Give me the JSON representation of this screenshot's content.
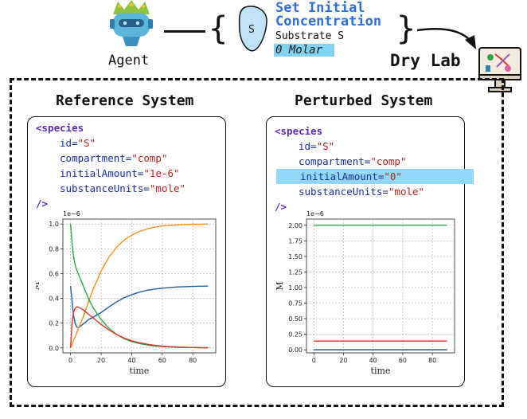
{
  "header": {
    "agent_label": "Agent",
    "species_symbol": "S",
    "action_title_line1": "Set Initial",
    "action_title_line2": "Concentration",
    "action_target": "Substrate S",
    "action_value": "0 Molar",
    "drylab_label": "Dry Lab"
  },
  "reference": {
    "title": "Reference System",
    "code": {
      "open": "<species",
      "id_attr": "id=",
      "id_val": "\"S\"",
      "comp_attr": "compartment=",
      "comp_val": "\"comp\"",
      "init_attr": "initialAmount=",
      "init_val": "\"1e-6\"",
      "units_attr": "substanceUnits=",
      "units_val": "\"mole\"",
      "close": "/>"
    }
  },
  "perturbed": {
    "title": "Perturbed System",
    "code": {
      "open": "<species",
      "id_attr": "id=",
      "id_val": "\"S\"",
      "comp_attr": "compartment=",
      "comp_val": "\"comp\"",
      "init_attr": "initialAmount=",
      "init_val": "\"0\"",
      "units_attr": "substanceUnits=",
      "units_val": "\"mole\"",
      "close": "/>"
    }
  },
  "colors": {
    "blue": "#1f5f9e",
    "orange": "#f5921e",
    "green": "#2aa84a",
    "red": "#e0352b",
    "highlight": "#8fd8f7",
    "title_blue": "#2f6fd6"
  },
  "chart_data": [
    {
      "type": "line",
      "xlabel": "time",
      "ylabel": "M",
      "offset_text": "1e−6",
      "xlim": [
        -5,
        95
      ],
      "ylim": [
        -0.04,
        1.04
      ],
      "xticks": [
        0,
        20,
        40,
        60,
        80
      ],
      "yticks": [
        0.0,
        0.2,
        0.4,
        0.6,
        0.8,
        1.0
      ],
      "ytick_labels": [
        "0.0",
        "0.2",
        "0.4",
        "0.6",
        "0.8",
        "1.0"
      ],
      "grid": true,
      "x": [
        0,
        1,
        2,
        3,
        4,
        5,
        6,
        8,
        10,
        12,
        15,
        20,
        25,
        30,
        35,
        40,
        45,
        50,
        55,
        60,
        65,
        70,
        75,
        80,
        85,
        90
      ],
      "series": [
        {
          "color": "#1f5f9e",
          "values": [
            0.5,
            0.38,
            0.26,
            0.2,
            0.17,
            0.165,
            0.17,
            0.19,
            0.21,
            0.23,
            0.25,
            0.285,
            0.33,
            0.37,
            0.405,
            0.43,
            0.45,
            0.465,
            0.475,
            0.482,
            0.488,
            0.492,
            0.494,
            0.496,
            0.498,
            0.499
          ]
        },
        {
          "color": "#f5921e",
          "values": [
            0.0,
            0.03,
            0.06,
            0.09,
            0.12,
            0.15,
            0.18,
            0.24,
            0.31,
            0.38,
            0.48,
            0.62,
            0.73,
            0.81,
            0.87,
            0.91,
            0.94,
            0.96,
            0.975,
            0.984,
            0.99,
            0.993,
            0.996,
            0.998,
            0.999,
            1.0
          ]
        },
        {
          "color": "#2aa84a",
          "values": [
            1.0,
            0.85,
            0.74,
            0.67,
            0.63,
            0.6,
            0.57,
            0.51,
            0.45,
            0.39,
            0.32,
            0.23,
            0.16,
            0.11,
            0.075,
            0.05,
            0.035,
            0.024,
            0.016,
            0.011,
            0.008,
            0.005,
            0.004,
            0.003,
            0.002,
            0.001
          ]
        },
        {
          "color": "#e0352b",
          "values": [
            0.0,
            0.2,
            0.29,
            0.32,
            0.33,
            0.33,
            0.325,
            0.31,
            0.29,
            0.27,
            0.24,
            0.19,
            0.145,
            0.11,
            0.08,
            0.058,
            0.042,
            0.03,
            0.021,
            0.015,
            0.01,
            0.007,
            0.005,
            0.003,
            0.002,
            0.001
          ]
        }
      ]
    },
    {
      "type": "line",
      "xlabel": "time",
      "ylabel": "M",
      "offset_text": "1e−6",
      "xlim": [
        -5,
        95
      ],
      "ylim": [
        -0.05,
        2.1
      ],
      "xticks": [
        0,
        20,
        40,
        60,
        80
      ],
      "yticks": [
        0.0,
        0.25,
        0.5,
        0.75,
        1.0,
        1.25,
        1.5,
        1.75,
        2.0
      ],
      "ytick_labels": [
        "0.00",
        "0.25",
        "0.50",
        "0.75",
        "1.00",
        "1.25",
        "1.50",
        "1.75",
        "2.00"
      ],
      "grid": true,
      "x": [
        0,
        90
      ],
      "series": [
        {
          "color": "#2aa84a",
          "values": [
            2.0,
            2.0
          ]
        },
        {
          "color": "#e0352b",
          "values": [
            0.14,
            0.14
          ]
        },
        {
          "color": "#f5921e",
          "values": [
            0.0,
            0.0
          ]
        },
        {
          "color": "#1f5f9e",
          "values": [
            0.0,
            0.0
          ]
        }
      ]
    }
  ]
}
